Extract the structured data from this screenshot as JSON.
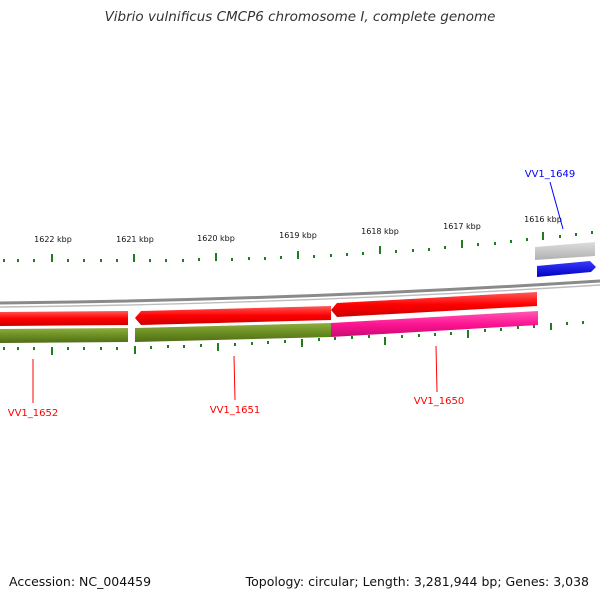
{
  "title": "Vibrio vulnificus CMCP6 chromosome I, complete genome",
  "footer": {
    "accession": "Accession: NC_004459",
    "summary": "Topology: circular; Length: 3,281,944 bp; Genes: 3,038"
  },
  "colors": {
    "tick": "#1e7e1e",
    "backbone": "#808080",
    "red_gene": "#ff0000",
    "green_gene": "#6b8e23",
    "pink_gene": "#ff1493",
    "blue_gene": "#0000ff",
    "gray_gene": "#c0c0c0"
  },
  "scale_labels": [
    "1622 kbp",
    "1621 kbp",
    "1620 kbp",
    "1619 kbp",
    "1618 kbp",
    "1617 kbp",
    "1616 kbp"
  ],
  "genes": [
    {
      "id": "VV1_1649",
      "color": "#0000ff"
    },
    {
      "id": "VV1_1650",
      "color": "#ff0000"
    },
    {
      "id": "VV1_1651",
      "color": "#ff0000"
    },
    {
      "id": "VV1_1652",
      "color": "#ff0000"
    }
  ]
}
